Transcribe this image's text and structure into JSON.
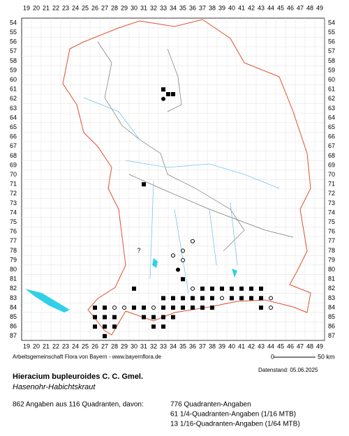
{
  "map": {
    "columns": [
      19,
      20,
      21,
      22,
      23,
      24,
      25,
      26,
      27,
      28,
      29,
      30,
      31,
      32,
      33,
      34,
      35,
      36,
      37,
      38,
      39,
      40,
      41,
      42,
      43,
      44,
      45,
      46,
      47,
      48,
      49
    ],
    "rows": [
      54,
      55,
      56,
      57,
      58,
      59,
      60,
      61,
      62,
      63,
      64,
      65,
      66,
      67,
      68,
      69,
      70,
      71,
      72,
      73,
      74,
      75,
      76,
      77,
      78,
      79,
      80,
      81,
      82,
      83,
      84,
      85,
      86,
      87
    ],
    "unknown_marks": [
      {
        "text": "?",
        "col": 30.5,
        "row": 78
      }
    ],
    "records": [
      {
        "col": 33,
        "row": 61,
        "kind": "square"
      },
      {
        "col": 33.5,
        "row": 61.5,
        "kind": "square"
      },
      {
        "col": 34,
        "row": 61.5,
        "kind": "square"
      },
      {
        "col": 33,
        "row": 62,
        "kind": "dot"
      },
      {
        "col": 31,
        "row": 71,
        "kind": "square"
      },
      {
        "col": 36,
        "row": 77,
        "kind": "circle"
      },
      {
        "col": 34,
        "row": 78.5,
        "kind": "circle"
      },
      {
        "col": 35,
        "row": 78,
        "kind": "circle"
      },
      {
        "col": 35,
        "row": 79,
        "kind": "circle"
      },
      {
        "col": 34.5,
        "row": 80,
        "kind": "dot"
      },
      {
        "col": 35,
        "row": 81,
        "kind": "square"
      },
      {
        "col": 30,
        "row": 82,
        "kind": "square"
      },
      {
        "col": 36,
        "row": 82,
        "kind": "circle"
      },
      {
        "col": 37,
        "row": 82,
        "kind": "square"
      },
      {
        "col": 38,
        "row": 82,
        "kind": "square"
      },
      {
        "col": 39,
        "row": 82,
        "kind": "square"
      },
      {
        "col": 40,
        "row": 82,
        "kind": "square"
      },
      {
        "col": 41,
        "row": 82,
        "kind": "square"
      },
      {
        "col": 42,
        "row": 82,
        "kind": "square"
      },
      {
        "col": 43,
        "row": 82,
        "kind": "square"
      },
      {
        "col": 33,
        "row": 83,
        "kind": "square"
      },
      {
        "col": 34,
        "row": 83,
        "kind": "square"
      },
      {
        "col": 35,
        "row": 83,
        "kind": "square"
      },
      {
        "col": 36,
        "row": 83,
        "kind": "square"
      },
      {
        "col": 37,
        "row": 83,
        "kind": "square"
      },
      {
        "col": 38,
        "row": 83,
        "kind": "square"
      },
      {
        "col": 39,
        "row": 83,
        "kind": "circle"
      },
      {
        "col": 40,
        "row": 83,
        "kind": "square"
      },
      {
        "col": 41,
        "row": 83,
        "kind": "square"
      },
      {
        "col": 42,
        "row": 83,
        "kind": "square"
      },
      {
        "col": 43,
        "row": 83,
        "kind": "square"
      },
      {
        "col": 44,
        "row": 83,
        "kind": "circle"
      },
      {
        "col": 26,
        "row": 84,
        "kind": "square"
      },
      {
        "col": 27,
        "row": 84,
        "kind": "square"
      },
      {
        "col": 28,
        "row": 84,
        "kind": "circle"
      },
      {
        "col": 29,
        "row": 84,
        "kind": "circle"
      },
      {
        "col": 30,
        "row": 84,
        "kind": "square"
      },
      {
        "col": 31,
        "row": 84,
        "kind": "square"
      },
      {
        "col": 32,
        "row": 84,
        "kind": "circle"
      },
      {
        "col": 33,
        "row": 84,
        "kind": "square"
      },
      {
        "col": 34,
        "row": 84,
        "kind": "square"
      },
      {
        "col": 35,
        "row": 84,
        "kind": "square"
      },
      {
        "col": 36,
        "row": 84,
        "kind": "square"
      },
      {
        "col": 37,
        "row": 84,
        "kind": "square"
      },
      {
        "col": 38,
        "row": 84,
        "kind": "square"
      },
      {
        "col": 43,
        "row": 84,
        "kind": "square"
      },
      {
        "col": 44,
        "row": 84,
        "kind": "circle"
      },
      {
        "col": 26,
        "row": 85,
        "kind": "square"
      },
      {
        "col": 27,
        "row": 85,
        "kind": "square"
      },
      {
        "col": 28,
        "row": 85,
        "kind": "square"
      },
      {
        "col": 31,
        "row": 85,
        "kind": "square"
      },
      {
        "col": 32,
        "row": 85,
        "kind": "square"
      },
      {
        "col": 33,
        "row": 85,
        "kind": "square"
      },
      {
        "col": 34,
        "row": 85,
        "kind": "square"
      },
      {
        "col": 26,
        "row": 86,
        "kind": "square"
      },
      {
        "col": 27,
        "row": 86,
        "kind": "square"
      },
      {
        "col": 28,
        "row": 86,
        "kind": "square"
      },
      {
        "col": 32,
        "row": 86,
        "kind": "square"
      },
      {
        "col": 33,
        "row": 86,
        "kind": "square"
      },
      {
        "col": 27,
        "row": 87,
        "kind": "square"
      }
    ]
  },
  "footer": {
    "credit": "Arbeitsgemeinschaft Flora von Bayern - www.bayernflora.de",
    "scale_start": "0",
    "scale_end": "50 km",
    "date": "Datenstand: 05.06.2025",
    "title": "Hieracium bupleuroides C. C. Gmel.",
    "subtitle": "Hasenohr-Habichtskraut",
    "summary": "862 Angaben aus 116 Quadranten, davon:",
    "counts": [
      "776 Quadranten-Angaben",
      "61 1/4-Quadranten-Angaben (1/16 MTB)",
      "13 1/16-Quadranten-Angaben (1/64 MTB)"
    ]
  }
}
